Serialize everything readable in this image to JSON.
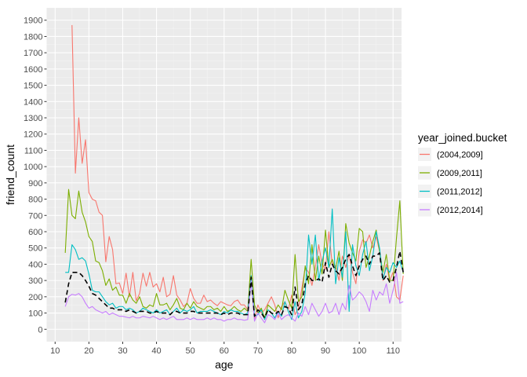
{
  "chart_data": {
    "type": "line",
    "xlabel": "age",
    "ylabel": "friend_count",
    "xlim": [
      10,
      115
    ],
    "ylim": [
      0,
      1900
    ],
    "xticks": [
      10,
      20,
      30,
      40,
      50,
      60,
      70,
      80,
      90,
      100,
      110
    ],
    "yticks": [
      0,
      100,
      200,
      300,
      400,
      500,
      600,
      700,
      800,
      900,
      1000,
      1100,
      1200,
      1300,
      1400,
      1500,
      1600,
      1700,
      1800,
      1900
    ],
    "grid": true,
    "legend": {
      "title": "year_joined.bucket",
      "placement": "right"
    },
    "series": [
      {
        "name": "(2004,2009]",
        "color": "#F8766D",
        "dash": "none",
        "x": [
          13,
          14,
          15,
          16,
          17,
          18,
          19,
          20,
          21,
          22,
          23,
          24,
          25,
          26,
          27,
          28,
          29,
          30,
          31,
          32,
          33,
          34,
          35,
          36,
          37,
          38,
          39,
          40,
          41,
          42,
          43,
          44,
          45,
          46,
          47,
          48,
          49,
          50,
          51,
          52,
          53,
          54,
          55,
          56,
          57,
          58,
          59,
          60,
          61,
          62,
          63,
          64,
          65,
          66,
          67,
          68,
          69,
          70,
          71,
          72,
          73,
          74,
          75,
          76,
          77,
          78,
          79,
          80,
          81,
          82,
          83,
          84,
          85,
          86,
          87,
          88,
          89,
          90,
          91,
          92,
          93,
          94,
          95,
          96,
          97,
          98,
          99,
          100,
          101,
          102,
          103,
          104,
          105,
          106,
          107,
          108,
          109,
          110,
          111,
          112,
          113
        ],
        "y": [
          null,
          null,
          1870,
          960,
          1300,
          1020,
          1165,
          840,
          800,
          790,
          720,
          700,
          415,
          570,
          490,
          280,
          285,
          220,
          345,
          200,
          350,
          175,
          220,
          345,
          265,
          350,
          260,
          280,
          230,
          320,
          200,
          215,
          330,
          210,
          180,
          140,
          160,
          250,
          190,
          160,
          160,
          210,
          170,
          180,
          160,
          145,
          170,
          160,
          150,
          145,
          170,
          180,
          150,
          150,
          120,
          320,
          60,
          150,
          100,
          120,
          160,
          200,
          150,
          70,
          140,
          170,
          120,
          210,
          90,
          130,
          250,
          380,
          350,
          270,
          380,
          520,
          400,
          370,
          600,
          400,
          390,
          300,
          450,
          380,
          460,
          350,
          280,
          480,
          550,
          530,
          580,
          500,
          570,
          480,
          300,
          400,
          300,
          350,
          200,
          180,
          330
        ]
      },
      {
        "name": "(2009,2011]",
        "color": "#7CAE00",
        "dash": "none",
        "x": [
          13,
          14,
          15,
          16,
          17,
          18,
          19,
          20,
          21,
          22,
          23,
          24,
          25,
          26,
          27,
          28,
          29,
          30,
          31,
          32,
          33,
          34,
          35,
          36,
          37,
          38,
          39,
          40,
          41,
          42,
          43,
          44,
          45,
          46,
          47,
          48,
          49,
          50,
          51,
          52,
          53,
          54,
          55,
          56,
          57,
          58,
          59,
          60,
          61,
          62,
          63,
          64,
          65,
          66,
          67,
          68,
          69,
          70,
          71,
          72,
          73,
          74,
          75,
          76,
          77,
          78,
          79,
          80,
          81,
          82,
          83,
          84,
          85,
          86,
          87,
          88,
          89,
          90,
          91,
          92,
          93,
          94,
          95,
          96,
          97,
          98,
          99,
          100,
          101,
          102,
          103,
          104,
          105,
          106,
          107,
          108,
          109,
          110,
          111,
          112,
          113
        ],
        "y": [
          470,
          860,
          700,
          680,
          850,
          720,
          660,
          570,
          540,
          420,
          410,
          360,
          270,
          310,
          240,
          260,
          210,
          210,
          160,
          220,
          180,
          160,
          200,
          140,
          130,
          150,
          140,
          220,
          150,
          150,
          160,
          120,
          150,
          190,
          130,
          120,
          160,
          130,
          170,
          140,
          130,
          120,
          140,
          140,
          120,
          130,
          110,
          140,
          110,
          120,
          140,
          120,
          110,
          130,
          110,
          430,
          150,
          100,
          130,
          70,
          150,
          130,
          110,
          150,
          120,
          240,
          180,
          130,
          460,
          170,
          200,
          390,
          280,
          520,
          300,
          450,
          340,
          610,
          380,
          430,
          370,
          480,
          300,
          650,
          530,
          470,
          420,
          620,
          600,
          380,
          450,
          540,
          610,
          480,
          350,
          460,
          300,
          300,
          560,
          790,
          340
        ]
      },
      {
        "name": "(2011,2012]",
        "color": "#00BFC4",
        "dash": "none",
        "x": [
          13,
          14,
          15,
          16,
          17,
          18,
          19,
          20,
          21,
          22,
          23,
          24,
          25,
          26,
          27,
          28,
          29,
          30,
          31,
          32,
          33,
          34,
          35,
          36,
          37,
          38,
          39,
          40,
          41,
          42,
          43,
          44,
          45,
          46,
          47,
          48,
          49,
          50,
          51,
          52,
          53,
          54,
          55,
          56,
          57,
          58,
          59,
          60,
          61,
          62,
          63,
          64,
          65,
          66,
          67,
          68,
          69,
          70,
          71,
          72,
          73,
          74,
          75,
          76,
          77,
          78,
          79,
          80,
          81,
          82,
          83,
          84,
          85,
          86,
          87,
          88,
          89,
          90,
          91,
          92,
          93,
          94,
          95,
          96,
          97,
          98,
          99,
          100,
          101,
          102,
          103,
          104,
          105,
          106,
          107,
          108,
          109,
          110,
          111,
          112,
          113
        ],
        "y": [
          350,
          350,
          520,
          490,
          430,
          440,
          420,
          340,
          240,
          230,
          230,
          200,
          170,
          150,
          160,
          130,
          140,
          140,
          120,
          130,
          120,
          100,
          110,
          130,
          120,
          110,
          100,
          120,
          100,
          110,
          120,
          90,
          110,
          130,
          100,
          120,
          110,
          120,
          140,
          100,
          110,
          110,
          110,
          120,
          110,
          100,
          90,
          110,
          100,
          120,
          110,
          110,
          100,
          90,
          100,
          330,
          80,
          90,
          120,
          60,
          120,
          100,
          70,
          110,
          80,
          170,
          110,
          60,
          170,
          70,
          110,
          220,
          580,
          400,
          580,
          300,
          420,
          500,
          380,
          740,
          280,
          440,
          320,
          600,
          110,
          520,
          390,
          330,
          460,
          540,
          360,
          450,
          600,
          500,
          310,
          380,
          350,
          410,
          380,
          420,
          350
        ]
      },
      {
        "name": "(2012,2014]",
        "color": "#C77CFF",
        "dash": "none",
        "x": [
          13,
          14,
          15,
          16,
          17,
          18,
          19,
          20,
          21,
          22,
          23,
          24,
          25,
          26,
          27,
          28,
          29,
          30,
          31,
          32,
          33,
          34,
          35,
          36,
          37,
          38,
          39,
          40,
          41,
          42,
          43,
          44,
          45,
          46,
          47,
          48,
          49,
          50,
          51,
          52,
          53,
          54,
          55,
          56,
          57,
          58,
          59,
          60,
          61,
          62,
          63,
          64,
          65,
          66,
          67,
          68,
          69,
          70,
          71,
          72,
          73,
          74,
          75,
          76,
          77,
          78,
          79,
          80,
          81,
          82,
          83,
          84,
          85,
          86,
          87,
          88,
          89,
          90,
          91,
          92,
          93,
          94,
          95,
          96,
          97,
          98,
          99,
          100,
          101,
          102,
          103,
          104,
          105,
          106,
          107,
          108,
          109,
          110,
          111,
          112,
          113
        ],
        "y": [
          140,
          200,
          215,
          210,
          220,
          200,
          160,
          130,
          140,
          120,
          110,
          100,
          110,
          90,
          100,
          90,
          80,
          80,
          75,
          70,
          80,
          70,
          70,
          80,
          75,
          70,
          80,
          70,
          60,
          70,
          60,
          70,
          80,
          60,
          60,
          60,
          70,
          60,
          70,
          60,
          60,
          60,
          70,
          60,
          70,
          60,
          60,
          50,
          60,
          60,
          70,
          60,
          60,
          55,
          60,
          300,
          50,
          100,
          70,
          40,
          90,
          80,
          60,
          100,
          60,
          80,
          90,
          70,
          50,
          100,
          80,
          140,
          90,
          160,
          120,
          80,
          110,
          160,
          100,
          110,
          160,
          90,
          160,
          120,
          270,
          180,
          200,
          230,
          210,
          170,
          110,
          240,
          180,
          230,
          210,
          280,
          160,
          240,
          350,
          160,
          170
        ]
      },
      {
        "name": "",
        "color": "#000000",
        "dash": "dashed",
        "x": [
          13,
          14,
          15,
          16,
          17,
          18,
          19,
          20,
          21,
          22,
          23,
          24,
          25,
          26,
          27,
          28,
          29,
          30,
          31,
          32,
          33,
          34,
          35,
          36,
          37,
          38,
          39,
          40,
          41,
          42,
          43,
          44,
          45,
          46,
          47,
          48,
          49,
          50,
          51,
          52,
          53,
          54,
          55,
          56,
          57,
          58,
          59,
          60,
          61,
          62,
          63,
          64,
          65,
          66,
          67,
          68,
          69,
          70,
          71,
          72,
          73,
          74,
          75,
          76,
          77,
          78,
          79,
          80,
          81,
          82,
          83,
          84,
          85,
          86,
          87,
          88,
          89,
          90,
          91,
          92,
          93,
          94,
          95,
          96,
          97,
          98,
          99,
          100,
          101,
          102,
          103,
          104,
          105,
          106,
          107,
          108,
          109,
          110,
          111,
          112,
          113
        ],
        "y": [
          165,
          280,
          350,
          350,
          350,
          330,
          300,
          265,
          220,
          210,
          190,
          170,
          150,
          130,
          130,
          120,
          120,
          120,
          110,
          120,
          110,
          100,
          110,
          110,
          110,
          100,
          100,
          110,
          100,
          100,
          100,
          90,
          110,
          110,
          100,
          100,
          100,
          110,
          110,
          100,
          100,
          100,
          100,
          100,
          100,
          100,
          90,
          100,
          90,
          100,
          100,
          100,
          90,
          90,
          90,
          320,
          80,
          120,
          100,
          70,
          120,
          100,
          90,
          110,
          90,
          140,
          130,
          90,
          260,
          120,
          150,
          280,
          330,
          300,
          300,
          310,
          290,
          410,
          320,
          400,
          360,
          340,
          380,
          430,
          460,
          390,
          330,
          390,
          430,
          450,
          400,
          450,
          450,
          470,
          300,
          330,
          290,
          300,
          380,
          480,
          350
        ]
      }
    ]
  }
}
